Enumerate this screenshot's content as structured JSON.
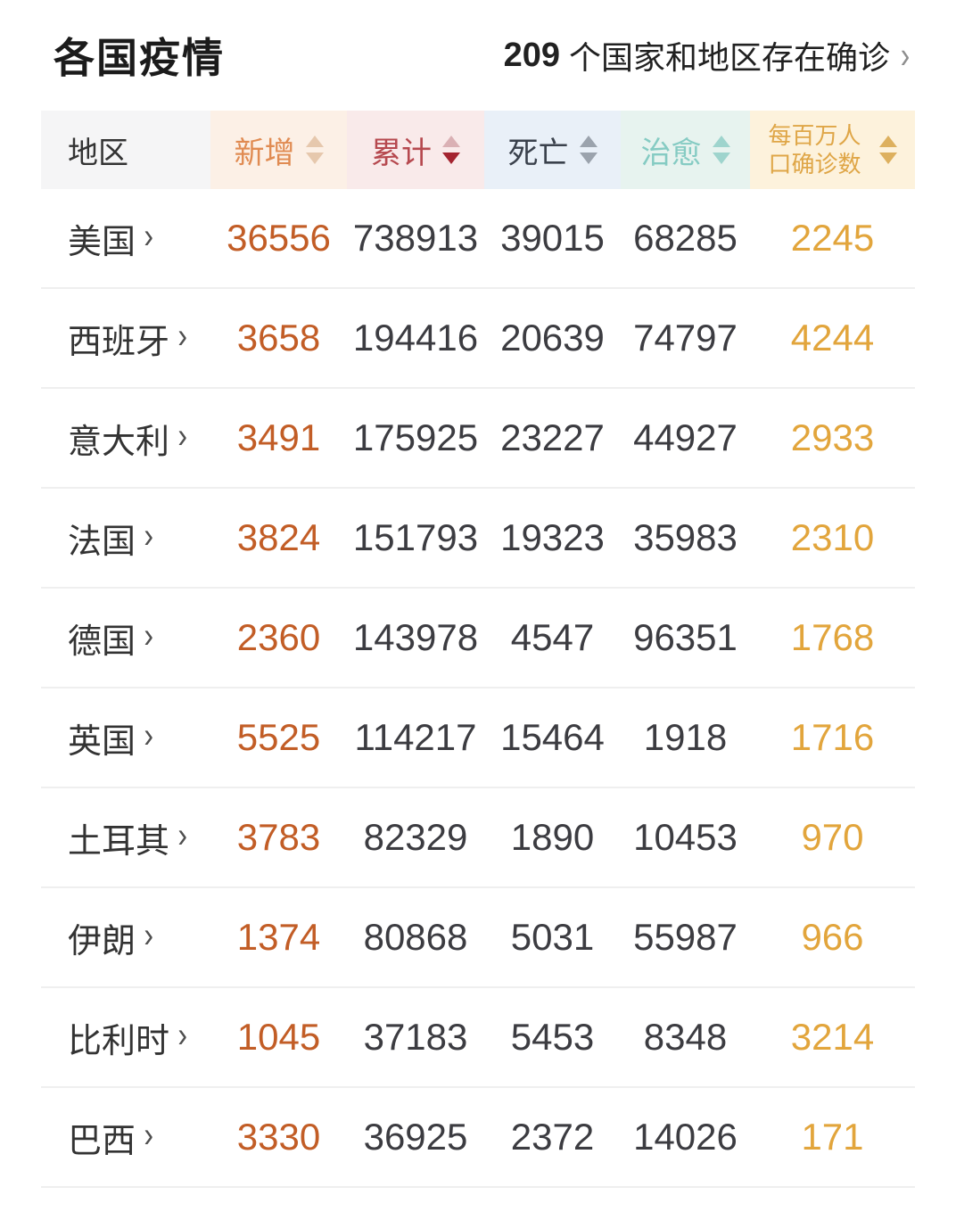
{
  "header": {
    "title": "各国疫情",
    "summary_count": "209",
    "summary_text": "个国家和地区存在确诊",
    "chevron": "›"
  },
  "table": {
    "columns": [
      {
        "key": "region",
        "label": "地区",
        "bg": "#f5f5f6",
        "color": "#333333",
        "sortable": false
      },
      {
        "key": "new",
        "label": "新增",
        "bg": "#fcf0e6",
        "color": "#e08b52",
        "arrow_up": "#e6c8ad",
        "arrow_down": "#e6c8ad",
        "sortable": true
      },
      {
        "key": "total",
        "label": "累计",
        "bg": "#f9eaea",
        "color": "#b6494f",
        "arrow_up": "#dab0b4",
        "arrow_down": "#a42430",
        "sortable": true,
        "sort_active": "desc"
      },
      {
        "key": "deaths",
        "label": "死亡",
        "bg": "#e9f0f8",
        "color": "#3a414c",
        "arrow_up": "#9ba3ad",
        "arrow_down": "#9ba3ad",
        "sortable": true
      },
      {
        "key": "cured",
        "label": "治愈",
        "bg": "#e7f3ef",
        "color": "#85cbc3",
        "arrow_up": "#9ed4cd",
        "arrow_down": "#9ed4cd",
        "sortable": true
      },
      {
        "key": "per_million",
        "label": "每百万人口确诊数",
        "bg": "#fdf2dc",
        "color": "#dfa647",
        "arrow_up": "#ddb05e",
        "arrow_down": "#ddb05e",
        "sortable": true
      }
    ],
    "value_colors": {
      "region": "#333333",
      "new": "#c25d26",
      "total": "#3c3c41",
      "deaths": "#3c3c41",
      "cured": "#3c3c41",
      "per_million": "#e2a53c"
    },
    "row_chevron": "›",
    "rows": [
      {
        "region": "美国",
        "new": "36556",
        "total": "738913",
        "deaths": "39015",
        "cured": "68285",
        "per_million": "2245"
      },
      {
        "region": "西班牙",
        "new": "3658",
        "total": "194416",
        "deaths": "20639",
        "cured": "74797",
        "per_million": "4244"
      },
      {
        "region": "意大利",
        "new": "3491",
        "total": "175925",
        "deaths": "23227",
        "cured": "44927",
        "per_million": "2933"
      },
      {
        "region": "法国",
        "new": "3824",
        "total": "151793",
        "deaths": "19323",
        "cured": "35983",
        "per_million": "2310"
      },
      {
        "region": "德国",
        "new": "2360",
        "total": "143978",
        "deaths": "4547",
        "cured": "96351",
        "per_million": "1768"
      },
      {
        "region": "英国",
        "new": "5525",
        "total": "114217",
        "deaths": "15464",
        "cured": "1918",
        "per_million": "1716"
      },
      {
        "region": "土耳其",
        "new": "3783",
        "total": "82329",
        "deaths": "1890",
        "cured": "10453",
        "per_million": "970"
      },
      {
        "region": "伊朗",
        "new": "1374",
        "total": "80868",
        "deaths": "5031",
        "cured": "55987",
        "per_million": "966"
      },
      {
        "region": "比利时",
        "new": "1045",
        "total": "37183",
        "deaths": "5453",
        "cured": "8348",
        "per_million": "3214"
      },
      {
        "region": "巴西",
        "new": "3330",
        "total": "36925",
        "deaths": "2372",
        "cured": "14026",
        "per_million": "171"
      }
    ]
  }
}
